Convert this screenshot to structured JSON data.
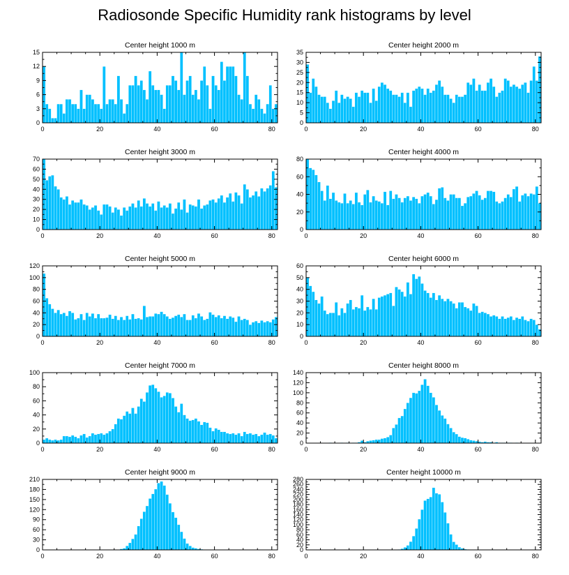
{
  "chart_data": {
    "title": "Radiosonde Specific Humidity rank histograms by level",
    "type": "bar",
    "bar_color": "#00c0ff",
    "bar_edge_color": "#ffffff",
    "x_ticks": [
      0,
      20,
      40,
      60,
      80
    ],
    "xlim": [
      0,
      82
    ],
    "panels": [
      {
        "title": "Center height 1000 m",
        "type": "bar",
        "ylim": [
          0,
          15
        ],
        "y_ticks": [
          0,
          3,
          6,
          9,
          12,
          15
        ],
        "values": [
          12,
          4,
          3,
          1,
          1,
          4,
          4,
          2,
          5,
          5,
          4,
          4,
          3,
          7,
          3,
          6,
          6,
          5,
          4,
          4,
          3,
          12,
          4,
          5,
          5,
          4,
          10,
          5,
          2,
          4,
          8,
          8,
          10,
          8,
          9,
          7,
          5,
          11,
          8,
          7,
          7,
          6,
          3,
          8,
          8,
          10,
          9,
          7,
          15,
          6,
          9,
          10,
          6,
          7,
          5,
          9,
          12,
          8,
          3,
          10,
          8,
          7,
          13,
          9,
          12,
          12,
          12,
          10,
          6,
          5,
          15,
          10,
          4,
          3,
          6,
          5,
          3,
          2,
          4,
          8,
          3,
          4
        ]
      },
      {
        "title": "Center height 2000 m",
        "type": "bar",
        "ylim": [
          0,
          35
        ],
        "y_ticks": [
          0,
          5,
          10,
          15,
          20,
          25,
          30,
          35
        ],
        "values": [
          29,
          15,
          22,
          18,
          14,
          13,
          13,
          10,
          7,
          11,
          16,
          10,
          14,
          12,
          13,
          12,
          8,
          15,
          13,
          16,
          15,
          15,
          10,
          17,
          11,
          18,
          20,
          19,
          17,
          16,
          14,
          14,
          13,
          15,
          10,
          15,
          8,
          16,
          17,
          18,
          17,
          14,
          17,
          15,
          16,
          19,
          21,
          18,
          14,
          14,
          12,
          10,
          14,
          13,
          13,
          14,
          20,
          19,
          22,
          16,
          19,
          16,
          16,
          20,
          22,
          18,
          13,
          15,
          16,
          22,
          21,
          18,
          19,
          18,
          17,
          19,
          20,
          15,
          21,
          28,
          21,
          33
        ]
      },
      {
        "title": "Center height 3000 m",
        "type": "bar",
        "ylim": [
          0,
          70
        ],
        "y_ticks": [
          0,
          10,
          20,
          30,
          40,
          50,
          60,
          70
        ],
        "values": [
          70,
          49,
          53,
          54,
          43,
          40,
          32,
          30,
          33,
          25,
          29,
          27,
          27,
          30,
          25,
          24,
          20,
          22,
          24,
          19,
          15,
          25,
          25,
          23,
          17,
          22,
          20,
          14,
          22,
          19,
          23,
          26,
          22,
          29,
          23,
          31,
          26,
          23,
          26,
          19,
          28,
          22,
          24,
          22,
          26,
          16,
          21,
          27,
          20,
          30,
          17,
          25,
          24,
          23,
          30,
          21,
          24,
          25,
          29,
          30,
          27,
          31,
          34,
          27,
          32,
          36,
          28,
          37,
          34,
          26,
          45,
          40,
          32,
          34,
          38,
          33,
          41,
          38,
          41,
          44,
          58,
          42
        ]
      },
      {
        "title": "Center height 4000 m",
        "type": "bar",
        "ylim": [
          0,
          80
        ],
        "y_ticks": [
          0,
          20,
          40,
          60,
          80
        ],
        "values": [
          80,
          70,
          68,
          62,
          54,
          44,
          33,
          50,
          35,
          42,
          33,
          31,
          30,
          41,
          30,
          33,
          29,
          42,
          31,
          28,
          40,
          45,
          31,
          38,
          33,
          32,
          30,
          43,
          28,
          44,
          35,
          40,
          36,
          31,
          36,
          38,
          33,
          37,
          35,
          30,
          38,
          40,
          42,
          38,
          29,
          34,
          47,
          48,
          36,
          33,
          40,
          40,
          36,
          36,
          27,
          30,
          37,
          38,
          41,
          44,
          39,
          34,
          36,
          44,
          44,
          43,
          32,
          30,
          32,
          36,
          40,
          37,
          46,
          49,
          32,
          39,
          41,
          38,
          41,
          40,
          49,
          30
        ]
      },
      {
        "title": "Center height 5000 m",
        "type": "bar",
        "ylim": [
          0,
          120
        ],
        "y_ticks": [
          0,
          20,
          40,
          60,
          80,
          100,
          120
        ],
        "values": [
          107,
          65,
          55,
          47,
          40,
          45,
          38,
          40,
          35,
          43,
          40,
          29,
          31,
          38,
          28,
          40,
          34,
          39,
          31,
          38,
          31,
          31,
          32,
          37,
          30,
          35,
          28,
          33,
          28,
          35,
          29,
          38,
          30,
          31,
          29,
          52,
          33,
          34,
          34,
          39,
          38,
          42,
          38,
          34,
          30,
          32,
          35,
          37,
          33,
          38,
          28,
          28,
          36,
          31,
          39,
          34,
          28,
          30,
          41,
          37,
          33,
          36,
          31,
          35,
          30,
          34,
          32,
          25,
          34,
          28,
          30,
          28,
          20,
          24,
          26,
          23,
          27,
          24,
          26,
          24,
          29,
          33
        ]
      },
      {
        "title": "Center height 6000 m",
        "type": "bar",
        "ylim": [
          0,
          60
        ],
        "y_ticks": [
          0,
          10,
          20,
          30,
          40,
          50,
          60
        ],
        "values": [
          50,
          43,
          38,
          31,
          28,
          34,
          22,
          19,
          20,
          20,
          29,
          18,
          24,
          20,
          28,
          31,
          23,
          25,
          24,
          35,
          22,
          25,
          23,
          32,
          23,
          33,
          34,
          35,
          36,
          37,
          26,
          42,
          40,
          38,
          34,
          46,
          36,
          53,
          49,
          51,
          45,
          39,
          37,
          33,
          37,
          31,
          35,
          32,
          30,
          32,
          30,
          28,
          24,
          29,
          29,
          25,
          24,
          22,
          28,
          26,
          20,
          21,
          20,
          19,
          17,
          18,
          17,
          15,
          17,
          15,
          16,
          17,
          14,
          16,
          15,
          17,
          14,
          13,
          15,
          14,
          10,
          6
        ]
      },
      {
        "title": "Center height 7000 m",
        "type": "bar",
        "ylim": [
          0,
          100
        ],
        "y_ticks": [
          0,
          20,
          40,
          60,
          80,
          100
        ],
        "values": [
          5,
          7,
          5,
          4,
          5,
          4,
          5,
          10,
          10,
          9,
          11,
          9,
          7,
          11,
          13,
          8,
          10,
          14,
          12,
          13,
          14,
          12,
          14,
          17,
          20,
          27,
          35,
          34,
          39,
          45,
          42,
          50,
          42,
          52,
          63,
          59,
          72,
          82,
          83,
          78,
          73,
          65,
          67,
          72,
          71,
          64,
          52,
          44,
          56,
          40,
          35,
          32,
          33,
          35,
          31,
          26,
          30,
          29,
          22,
          17,
          21,
          19,
          16,
          16,
          14,
          13,
          14,
          12,
          14,
          10,
          16,
          13,
          14,
          12,
          13,
          10,
          12,
          15,
          12,
          13,
          11,
          7
        ]
      },
      {
        "title": "Center height 8000 m",
        "type": "bar",
        "ylim": [
          0,
          140
        ],
        "y_ticks": [
          0,
          20,
          40,
          60,
          80,
          100,
          120,
          140
        ],
        "values": [
          0,
          0,
          0,
          0,
          0,
          0,
          0,
          0,
          1,
          0,
          0,
          0,
          1,
          0,
          1,
          0,
          1,
          1,
          2,
          5,
          2,
          4,
          5,
          6,
          7,
          7,
          9,
          10,
          12,
          16,
          30,
          37,
          50,
          54,
          68,
          80,
          90,
          100,
          99,
          104,
          116,
          127,
          114,
          100,
          91,
          76,
          65,
          55,
          49,
          38,
          30,
          22,
          18,
          13,
          11,
          10,
          8,
          6,
          5,
          4,
          3,
          2,
          3,
          2,
          2,
          1,
          2,
          1,
          1,
          1,
          1,
          1,
          0,
          1,
          0,
          0,
          0,
          0,
          0,
          0,
          0,
          0
        ]
      },
      {
        "title": "Center height 9000 m",
        "type": "bar",
        "ylim": [
          0,
          210
        ],
        "y_ticks": [
          0,
          30,
          60,
          90,
          120,
          150,
          180,
          210
        ],
        "values": [
          0,
          0,
          0,
          0,
          0,
          0,
          0,
          0,
          0,
          0,
          0,
          0,
          0,
          0,
          0,
          0,
          0,
          0,
          0,
          0,
          0,
          0,
          0,
          0,
          0,
          0,
          0,
          3,
          5,
          12,
          21,
          33,
          46,
          71,
          93,
          114,
          131,
          153,
          167,
          181,
          199,
          204,
          192,
          165,
          139,
          113,
          96,
          75,
          54,
          34,
          19,
          12,
          7,
          5,
          3,
          2,
          1,
          1,
          0,
          0,
          0,
          0,
          0,
          0,
          0,
          0,
          0,
          0,
          0,
          0,
          0,
          0,
          0,
          0,
          0,
          0,
          0,
          0,
          0,
          0,
          0,
          0
        ]
      },
      {
        "title": "Center height 10000 m",
        "type": "bar",
        "ylim": [
          0,
          280
        ],
        "y_ticks": [
          0,
          20,
          40,
          60,
          80,
          100,
          120,
          140,
          160,
          180,
          200,
          220,
          240,
          260,
          280
        ],
        "values": [
          0,
          0,
          0,
          0,
          0,
          0,
          0,
          0,
          0,
          0,
          0,
          0,
          0,
          0,
          0,
          0,
          0,
          0,
          0,
          0,
          0,
          0,
          0,
          0,
          0,
          0,
          0,
          0,
          0,
          0,
          0,
          1,
          2,
          5,
          10,
          18,
          33,
          55,
          85,
          122,
          160,
          196,
          203,
          210,
          247,
          225,
          221,
          190,
          149,
          106,
          62,
          32,
          21,
          11,
          6,
          3,
          2,
          1,
          1,
          0,
          0,
          0,
          0,
          0,
          0,
          0,
          0,
          0,
          0,
          0,
          0,
          0,
          0,
          0,
          0,
          0,
          0,
          0,
          0,
          0,
          0,
          0
        ]
      }
    ]
  }
}
